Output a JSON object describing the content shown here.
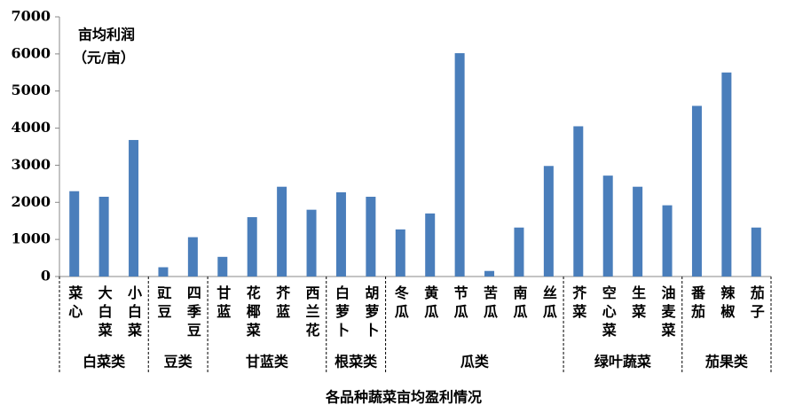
{
  "chart_data": {
    "type": "bar",
    "title": "各品种蔬菜亩均盈利情况",
    "annotations": [
      "亩均利润",
      "（元/亩）"
    ],
    "color": "#4a7ebb",
    "ylim": [
      0,
      7000
    ],
    "yticks": [
      0,
      1000,
      2000,
      3000,
      4000,
      5000,
      6000,
      7000
    ],
    "groups": [
      {
        "name": "白菜类",
        "categories": [
          "菜心",
          "大白菜",
          "小白菜"
        ],
        "values": [
          2300,
          2150,
          3680
        ]
      },
      {
        "name": "豆类",
        "categories": [
          "豇豆",
          "四季豆"
        ],
        "values": [
          250,
          1060
        ]
      },
      {
        "name": "甘蓝类",
        "categories": [
          "甘蓝",
          "花椰菜",
          "芥蓝",
          "西兰花"
        ],
        "values": [
          530,
          1600,
          2420,
          1800
        ]
      },
      {
        "name": "根菜类",
        "categories": [
          "白萝卜",
          "胡萝卜"
        ],
        "values": [
          2270,
          2150
        ]
      },
      {
        "name": "瓜类",
        "categories": [
          "冬瓜",
          "黄瓜",
          "节瓜",
          "苦瓜",
          "南瓜",
          "丝瓜"
        ],
        "values": [
          1270,
          1700,
          6020,
          150,
          1320,
          2980
        ]
      },
      {
        "name": "绿叶蔬菜",
        "categories": [
          "芥菜",
          "空心菜",
          "生菜",
          "油麦菜"
        ],
        "values": [
          4050,
          2720,
          2420,
          1920
        ]
      },
      {
        "name": "茄果类",
        "categories": [
          "番茄",
          "辣椒",
          "茄子"
        ],
        "values": [
          4600,
          5500,
          1320
        ]
      }
    ]
  }
}
